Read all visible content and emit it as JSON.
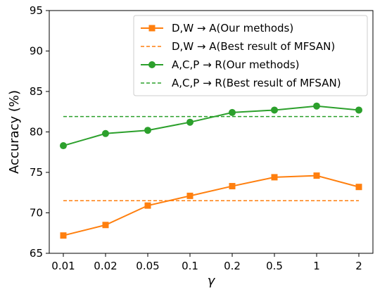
{
  "chart_data": {
    "type": "line",
    "title": "",
    "xlabel": "γ",
    "ylabel": "Accuracy (%)",
    "categories": [
      "0.01",
      "0.02",
      "0.05",
      "0.1",
      "0.2",
      "0.5",
      "1",
      "2"
    ],
    "ylim": [
      65,
      95
    ],
    "yticks": [
      "65",
      "70",
      "75",
      "80",
      "85",
      "90",
      "95"
    ],
    "grid": false,
    "legend_position": "top-right",
    "series": [
      {
        "name": "D,W → A(Our methods)",
        "style": "solid-square",
        "color": "#ff7f0e",
        "values": [
          67.2,
          68.5,
          70.9,
          72.1,
          73.3,
          74.4,
          74.6,
          73.2
        ]
      },
      {
        "name": "D,W → A(Best result of MFSAN)",
        "style": "dashed",
        "color": "#ff7f0e",
        "values": [
          71.5,
          71.5,
          71.5,
          71.5,
          71.5,
          71.5,
          71.5,
          71.5
        ]
      },
      {
        "name": "A,C,P → R(Our methods)",
        "style": "solid-circle",
        "color": "#2ca02c",
        "values": [
          78.3,
          79.8,
          80.2,
          81.2,
          82.4,
          82.7,
          83.2,
          82.7
        ]
      },
      {
        "name": "A,C,P → R(Best result of MFSAN)",
        "style": "dashed",
        "color": "#2ca02c",
        "values": [
          81.9,
          81.9,
          81.9,
          81.9,
          81.9,
          81.9,
          81.9,
          81.9
        ]
      }
    ]
  }
}
